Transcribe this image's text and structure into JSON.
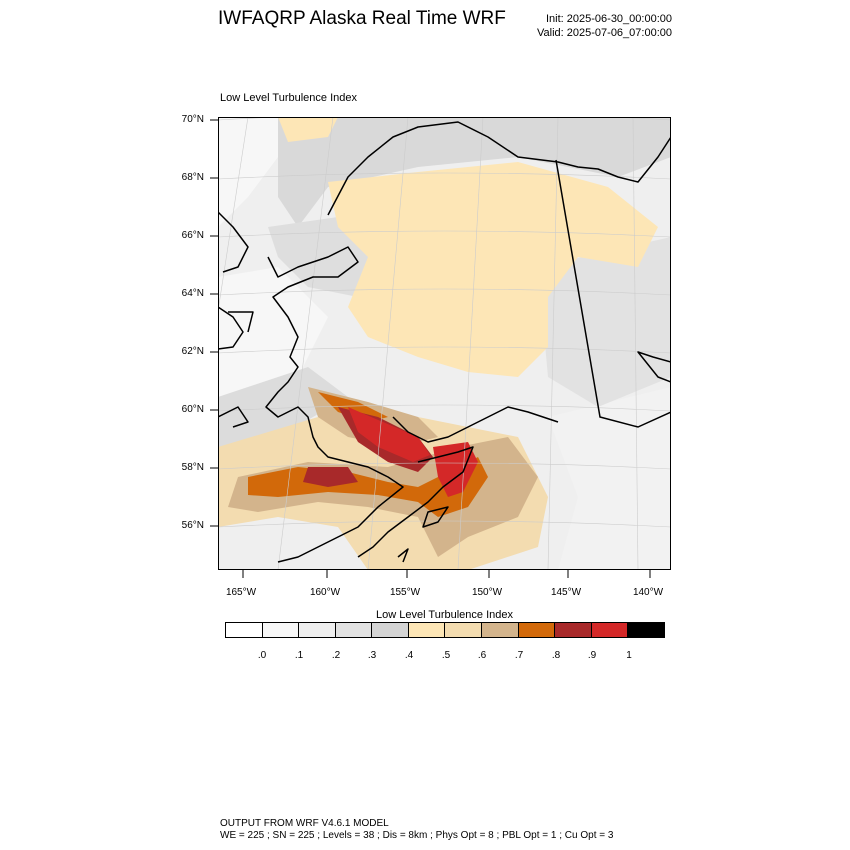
{
  "header": {
    "title": "IWFAQRP Alaska Real Time WRF",
    "init": "Init: 2025-06-30_00:00:00",
    "valid": "Valid: 2025-07-06_07:00:00"
  },
  "plot": {
    "title": "Low Level Turbulence Index",
    "lat_labels": [
      "70°N",
      "68°N",
      "66°N",
      "64°N",
      "62°N",
      "60°N",
      "58°N",
      "56°N"
    ],
    "lon_labels": [
      "165°W",
      "160°W",
      "155°W",
      "150°W",
      "145°W",
      "140°W"
    ]
  },
  "colorbar": {
    "title": "Low Level Turbulence Index",
    "colors": [
      "#ffffff",
      "#f7f7f7",
      "#efefef",
      "#e2e2e2",
      "#d4d4d4",
      "#fde6b6",
      "#f3dcb0",
      "#d3b48c",
      "#d2690a",
      "#a8292a",
      "#d42828",
      "#000000"
    ],
    "labels": [
      ".0",
      ".1",
      ".2",
      ".3",
      ".4",
      ".5",
      ".6",
      ".7",
      ".8",
      ".9",
      "1"
    ]
  },
  "footer": {
    "line1": "OUTPUT FROM WRF V4.6.1 MODEL",
    "line2": "WE = 225 ; SN = 225 ; Levels = 38 ; Dis = 8km ; Phys Opt = 8 ; PBL Opt = 1 ; Cu Opt = 3"
  }
}
